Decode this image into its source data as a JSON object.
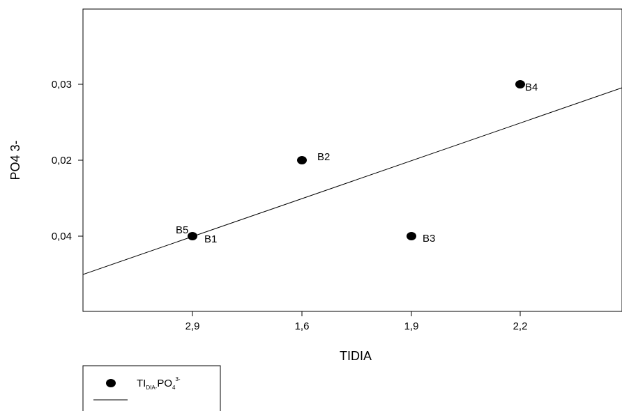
{
  "chart_data": {
    "type": "scatter",
    "xlabel": "TIDIA",
    "ylabel": "PO4 3-",
    "x_tick_labels": [
      "2,9",
      "1,6",
      "1,9",
      "2,2"
    ],
    "y_tick_labels": [
      "0,04",
      "0,02",
      "0,03"
    ],
    "points": [
      {
        "label": "B1",
        "x": "2,9",
        "y": "0,04"
      },
      {
        "label": "B5",
        "x": "2,9",
        "y": "0,04"
      },
      {
        "label": "B2",
        "x": "1,6",
        "y": "0,02"
      },
      {
        "label": "B3",
        "x": "1,9",
        "y": "0,04"
      },
      {
        "label": "B4",
        "x": "2,2",
        "y": "0,03"
      }
    ],
    "fit_line": {
      "present": true
    },
    "legend": {
      "main": "TI",
      "sub1": "DIA-",
      "mid": "PO",
      "sub2": "4",
      "sup": "3-"
    }
  }
}
